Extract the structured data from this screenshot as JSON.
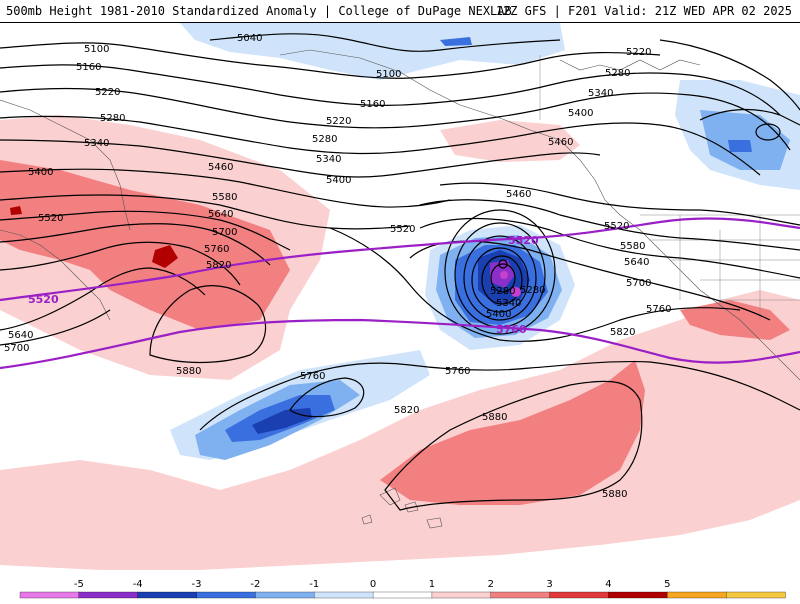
{
  "header": {
    "left": "500mb Height 1981-2010 Standardized Anomaly | College of DuPage NEXLAB",
    "right": "12Z GFS | F201 Valid: 21Z WED APR 02 2025"
  },
  "legend": {
    "ticks": [
      "-5",
      "-4",
      "-3",
      "-2",
      "-1",
      "0",
      "1",
      "2",
      "3",
      "4",
      "5"
    ],
    "colors": [
      "#e879e8",
      "#8b2fc9",
      "#1a3fb0",
      "#3a6fe0",
      "#7fb0f0",
      "#cfe4fb",
      "#ffffff",
      "#fbd0d0",
      "#f38080",
      "#e03a3a",
      "#b00000",
      "#f5a623",
      "#f5c842"
    ]
  },
  "contour_labels": [
    {
      "text": "5040"
    },
    {
      "text": "5100"
    },
    {
      "text": "5100"
    },
    {
      "text": "5160"
    },
    {
      "text": "5160"
    },
    {
      "text": "5220"
    },
    {
      "text": "5220"
    },
    {
      "text": "5220"
    },
    {
      "text": "5280"
    },
    {
      "text": "5280"
    },
    {
      "text": "5280"
    },
    {
      "text": "5340"
    },
    {
      "text": "5340"
    },
    {
      "text": "5340"
    },
    {
      "text": "5400"
    },
    {
      "text": "5400"
    },
    {
      "text": "5400"
    },
    {
      "text": "5460"
    },
    {
      "text": "5460"
    },
    {
      "text": "5460"
    },
    {
      "text": "5520"
    },
    {
      "text": "5520"
    },
    {
      "text": "5520"
    },
    {
      "text": "5580"
    },
    {
      "text": "5580"
    },
    {
      "text": "5640"
    },
    {
      "text": "5640"
    },
    {
      "text": "5640"
    },
    {
      "text": "5700"
    },
    {
      "text": "5700"
    },
    {
      "text": "5700"
    },
    {
      "text": "5760"
    },
    {
      "text": "5760"
    },
    {
      "text": "5760"
    },
    {
      "text": "5760"
    },
    {
      "text": "5820"
    },
    {
      "text": "5820"
    },
    {
      "text": "5820"
    },
    {
      "text": "5880"
    },
    {
      "text": "5880"
    },
    {
      "text": "5880"
    },
    {
      "text": "5280"
    },
    {
      "text": "5340"
    },
    {
      "text": "5400"
    },
    {
      "text": "5280"
    }
  ],
  "purple_labels": [
    {
      "text": "5520"
    },
    {
      "text": "5520"
    },
    {
      "text": "5760"
    }
  ]
}
